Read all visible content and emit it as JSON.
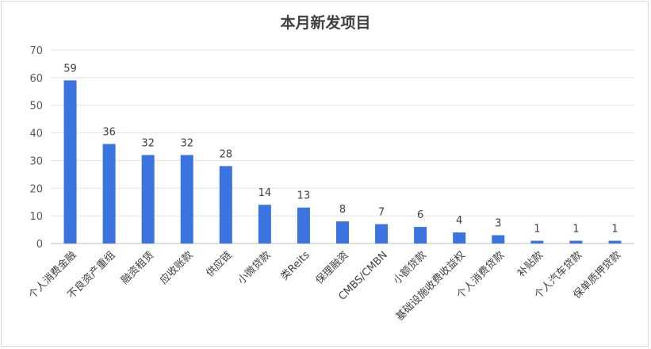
{
  "chart_data": {
    "type": "bar",
    "title": "本月新发项目",
    "xlabel": "",
    "ylabel": "",
    "ylim": [
      0,
      70
    ],
    "yticks": [
      0,
      10,
      20,
      30,
      40,
      50,
      60,
      70
    ],
    "grid": true,
    "legend": "none",
    "bar_color": "#3b74e0",
    "categories": [
      "个人消费金融",
      "不良资产重组",
      "融资租赁",
      "应收账款",
      "供应链",
      "小微贷款",
      "类Reits",
      "保理融资",
      "CMBS/CMBN",
      "小额贷款",
      "基础设施收费收益权",
      "个人消费贷款",
      "补贴款",
      "个人汽车贷款",
      "保单质押贷款"
    ],
    "values": [
      59,
      36,
      32,
      32,
      28,
      14,
      13,
      8,
      7,
      6,
      4,
      3,
      1,
      1,
      1
    ]
  }
}
